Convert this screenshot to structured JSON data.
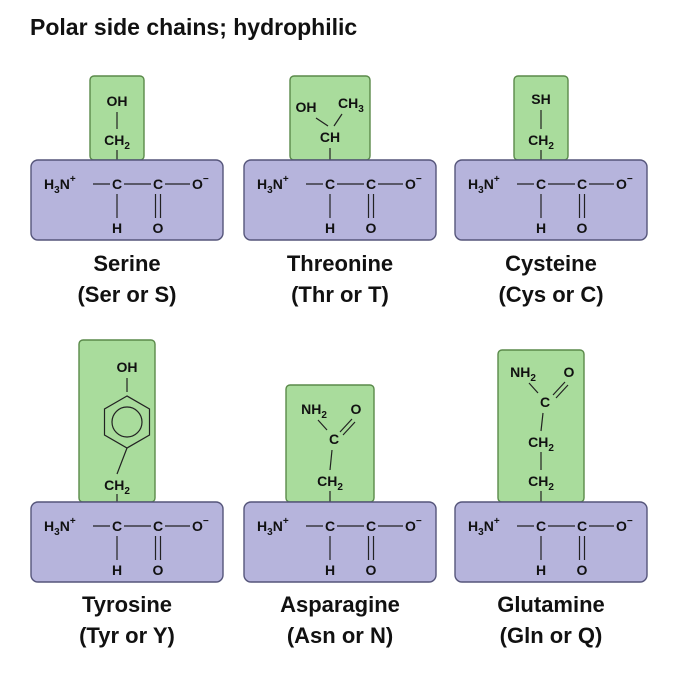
{
  "title": "Polar side chains; hydrophilic",
  "colors": {
    "backbone_fill": "#b6b4dc",
    "side_chain_fill": "#a9dc9c"
  },
  "backbone_text": {
    "h3n": "H",
    "sub3": "3",
    "n": "N",
    "plus": "+",
    "c": "C",
    "o_minus": "O",
    "minus": "−",
    "h": "H",
    "o": "O"
  },
  "amino_acids": [
    {
      "name": "Serine",
      "abbrev": "(Ser or S)",
      "side_chain": {
        "top": "OH",
        "mid": "CH",
        "mid_sub": "2"
      }
    },
    {
      "name": "Threonine",
      "abbrev": "(Thr or T)",
      "side_chain": {
        "oh": "OH",
        "ch3": "CH",
        "ch3_sub": "3",
        "ch": "CH"
      }
    },
    {
      "name": "Cysteine",
      "abbrev": "(Cys or C)",
      "side_chain": {
        "top": "SH",
        "mid": "CH",
        "mid_sub": "2"
      }
    },
    {
      "name": "Tyrosine",
      "abbrev": "(Tyr or Y)",
      "side_chain": {
        "top": "OH",
        "mid": "CH",
        "mid_sub": "2"
      }
    },
    {
      "name": "Asparagine",
      "abbrev": "(Asn or N)",
      "side_chain": {
        "nh2": "NH",
        "nh2_sub": "2",
        "o": "O",
        "c": "C",
        "ch2": "CH",
        "ch2_sub": "2"
      }
    },
    {
      "name": "Glutamine",
      "abbrev": "(Gln or Q)",
      "side_chain": {
        "nh2": "NH",
        "nh2_sub": "2",
        "o": "O",
        "c": "C",
        "ch2a": "CH",
        "ch2a_sub": "2",
        "ch2b": "CH",
        "ch2b_sub": "2"
      }
    }
  ]
}
